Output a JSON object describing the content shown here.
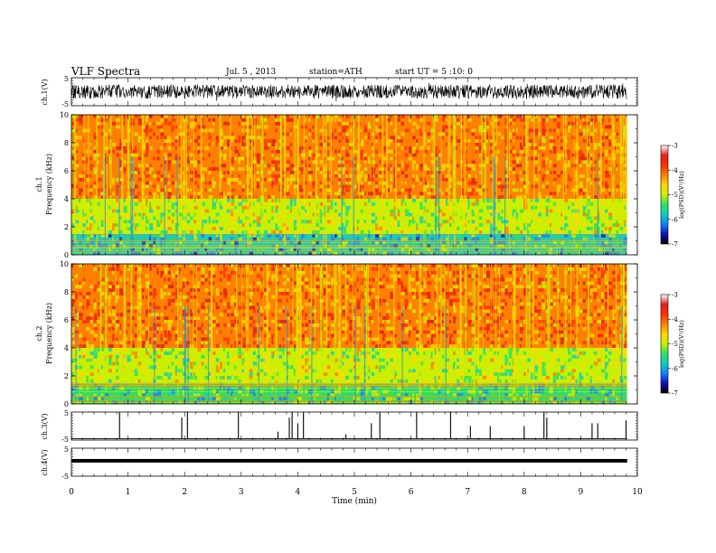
{
  "header": {
    "title": "VLF Spectra",
    "date": "Jul. 5 , 2013",
    "station": "station=ATH",
    "start": "start UT = 5 :10: 0"
  },
  "colors": {
    "colormap": [
      "#ffffff",
      "#e02020",
      "#ff3000",
      "#ff8000",
      "#ffd800",
      "#c8f000",
      "#30e060",
      "#10d0c0",
      "#1080ff",
      "#1010c0",
      "#000000"
    ]
  },
  "chart_data": [
    {
      "type": "line",
      "panel": "ch1-waveform",
      "ylabel": "ch.1(V)",
      "ylim": [
        -5,
        5
      ],
      "yticks": [
        "5",
        "-5"
      ],
      "description_of_series": "dense broadband noise oscillating between about -3 and +3 V"
    },
    {
      "type": "heatmap",
      "panel": "ch1-spectrogram",
      "ylabel_line1": "ch.1",
      "ylabel_line2": "Frequency (kHz)",
      "ylim": [
        0,
        10
      ],
      "yticks": [
        "0",
        "2",
        "4",
        "6",
        "8",
        "10"
      ],
      "colorbar": {
        "label": "log(PSD)(V²/Hz)",
        "ticks": [
          "-3",
          "-4",
          "-5",
          "-6",
          "-7"
        ],
        "range": [
          -7,
          -3
        ]
      },
      "bands": [
        {
          "from_khz": 0,
          "to_khz": 1.5,
          "level": -5.7
        },
        {
          "from_khz": 1.5,
          "to_khz": 4,
          "level": -5.0
        },
        {
          "from_khz": 4,
          "to_khz": 10,
          "level": -4.1
        }
      ]
    },
    {
      "type": "heatmap",
      "panel": "ch2-spectrogram",
      "ylabel_line1": "ch.2",
      "ylabel_line2": "Frequency (kHz)",
      "ylim": [
        0,
        10
      ],
      "yticks": [
        "0",
        "2",
        "4",
        "6",
        "8",
        "10"
      ],
      "colorbar": {
        "label": "log(PSD)(V²/Hz)",
        "ticks": [
          "-3",
          "-4",
          "-5",
          "-6",
          "-7"
        ],
        "range": [
          -7,
          -3
        ]
      },
      "bands": [
        {
          "from_khz": 0,
          "to_khz": 1.5,
          "level": -5.6
        },
        {
          "from_khz": 1.5,
          "to_khz": 4,
          "level": -5.0
        },
        {
          "from_khz": 4,
          "to_khz": 10,
          "level": -4.1
        }
      ]
    },
    {
      "type": "line",
      "panel": "ch3-waveform",
      "ylabel": "ch.3(V)",
      "ylim": [
        -5,
        5
      ],
      "yticks": [
        "5",
        "-5"
      ],
      "baseline_v": -4.5,
      "spikes": [
        {
          "t_min": 0.85,
          "v": 5
        },
        {
          "t_min": 1.95,
          "v": 3
        },
        {
          "t_min": 2.05,
          "v": 5
        },
        {
          "t_min": 2.95,
          "v": 5
        },
        {
          "t_min": 3.65,
          "v": -2
        },
        {
          "t_min": 3.85,
          "v": 3
        },
        {
          "t_min": 3.9,
          "v": 5
        },
        {
          "t_min": 4.0,
          "v": 1
        },
        {
          "t_min": 4.1,
          "v": 5
        },
        {
          "t_min": 4.85,
          "v": -3
        },
        {
          "t_min": 5.3,
          "v": 1
        },
        {
          "t_min": 5.45,
          "v": 5
        },
        {
          "t_min": 6.1,
          "v": 5
        },
        {
          "t_min": 6.7,
          "v": 5
        },
        {
          "t_min": 7.05,
          "v": 0
        },
        {
          "t_min": 7.4,
          "v": 0
        },
        {
          "t_min": 8.0,
          "v": 0
        },
        {
          "t_min": 8.35,
          "v": 5
        },
        {
          "t_min": 8.4,
          "v": 3
        },
        {
          "t_min": 9.2,
          "v": 1
        },
        {
          "t_min": 9.3,
          "v": 1
        },
        {
          "t_min": 9.8,
          "v": 2
        }
      ]
    },
    {
      "type": "line",
      "panel": "ch4-waveform",
      "ylabel": "ch.4(V)",
      "ylim": [
        -5,
        5
      ],
      "yticks": [
        "5",
        "-5"
      ],
      "baseline_v": 0.5,
      "description_of_series": "flat thick trace near 0 V across the whole interval"
    },
    {
      "type": "axis",
      "panel": "time-axis",
      "xlabel": "Time (min)",
      "xlim": [
        0,
        10
      ],
      "xticks": [
        "0",
        "1",
        "2",
        "3",
        "4",
        "5",
        "6",
        "7",
        "8",
        "9",
        "10"
      ],
      "data_end_min": 9.82
    }
  ]
}
